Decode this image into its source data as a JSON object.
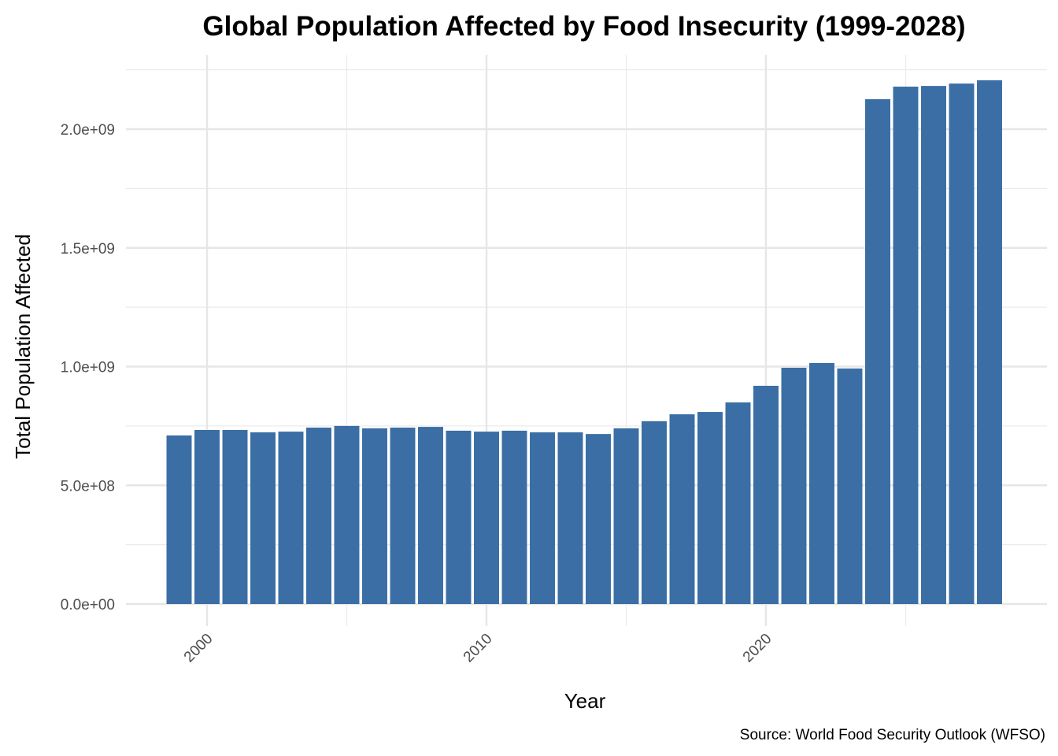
{
  "chart_data": {
    "type": "bar",
    "title": "Global Population Affected by Food Insecurity (1999-2028)",
    "xlabel": "Year",
    "ylabel": "Total Population Affected",
    "caption": "Source: World Food Security Outlook (WFSO)",
    "bar_color": "#3a6ea5",
    "grid": true,
    "legend": "none",
    "xlim": [
      1997.5,
      2029.5
    ],
    "ylim": [
      0,
      2250000000
    ],
    "x_ticks": [
      2000,
      2010,
      2020
    ],
    "x_tick_labels": [
      "2000",
      "2010",
      "2020"
    ],
    "x_minor_ticks": [
      2005,
      2015,
      2025
    ],
    "y_ticks": [
      0,
      500000000,
      1000000000,
      1500000000,
      2000000000
    ],
    "y_tick_labels": [
      "0.0e+00",
      "5.0e+08",
      "1.0e+09",
      "1.5e+09",
      "2.0e+09"
    ],
    "y_minor_ticks": [
      250000000,
      750000000,
      1250000000,
      1750000000,
      2250000000
    ],
    "categories": [
      1999,
      2000,
      2001,
      2002,
      2003,
      2004,
      2005,
      2006,
      2007,
      2008,
      2009,
      2010,
      2011,
      2012,
      2013,
      2014,
      2015,
      2016,
      2017,
      2018,
      2019,
      2020,
      2021,
      2022,
      2023,
      2024,
      2025,
      2026,
      2027,
      2028
    ],
    "values": [
      710000000,
      733000000,
      733000000,
      723000000,
      726000000,
      743000000,
      750000000,
      740000000,
      743000000,
      746000000,
      730000000,
      726000000,
      730000000,
      723000000,
      723000000,
      716000000,
      740000000,
      770000000,
      799000000,
      809000000,
      849000000,
      919000000,
      995000000,
      1015000000,
      992000000,
      2126000000,
      2179000000,
      2182000000,
      2192000000,
      2206000000
    ]
  }
}
